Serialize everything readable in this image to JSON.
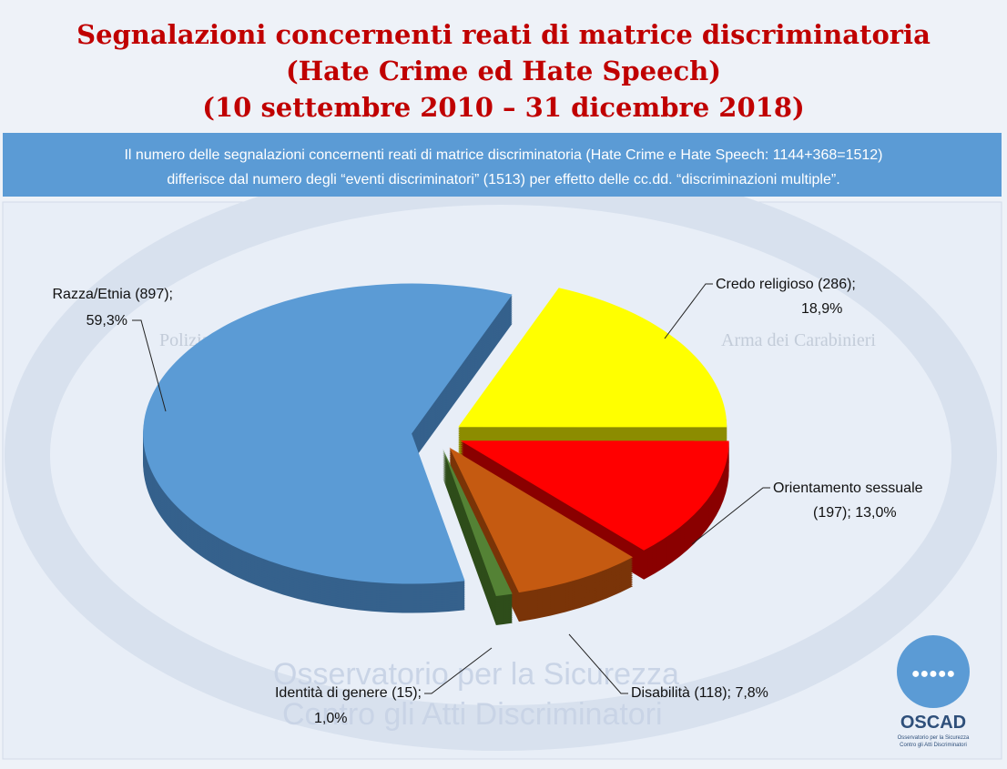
{
  "chart_data": {
    "type": "pie",
    "title": [
      "Segnalazioni concernenti reati di matrice discriminatoria",
      "(Hate Crime ed Hate Speech)",
      "(10 settembre 2010 – 31 dicembre 2018)"
    ],
    "subtitle": [
      "Il numero delle segnalazioni concernenti reati di matrice discriminatoria (Hate Crime e Hate Speech: 1144+368=1512)",
      "differisce dal numero degli “eventi discriminatori” (1513) per effetto delle cc.dd. “discriminazioni multiple”."
    ],
    "categories": [
      "Credo religioso",
      "Orientamento sessuale",
      "Disabilità",
      "Identità di genere",
      "Razza/Etnia"
    ],
    "values": [
      286,
      197,
      118,
      15,
      897
    ],
    "value_labels": [
      "(286);",
      "(197);",
      "(118);",
      "(15);",
      "(897);"
    ],
    "percent_labels": [
      "18,9%",
      "13,0%",
      "7,8%",
      "1,0%",
      "59,3%"
    ],
    "colors": [
      "#ffff00",
      "#ff0000",
      "#c55a11",
      "#548235",
      "#5b9bd5"
    ],
    "side_colors": [
      "#8c8c00",
      "#8a0000",
      "#7a3408",
      "#2e4d1a",
      "#35618c"
    ],
    "watermark": [
      "Osservatorio per la Sicurezza",
      "Contro gli Atti Discriminatori"
    ],
    "logos": {
      "left": "Polizia di Stato",
      "right": "Arma dei Carabinieri",
      "brand": "OSCAD",
      "brand_sub": [
        "Osservatorio per la Sicurezza",
        "Contro gli Atti Discriminatori"
      ]
    }
  }
}
